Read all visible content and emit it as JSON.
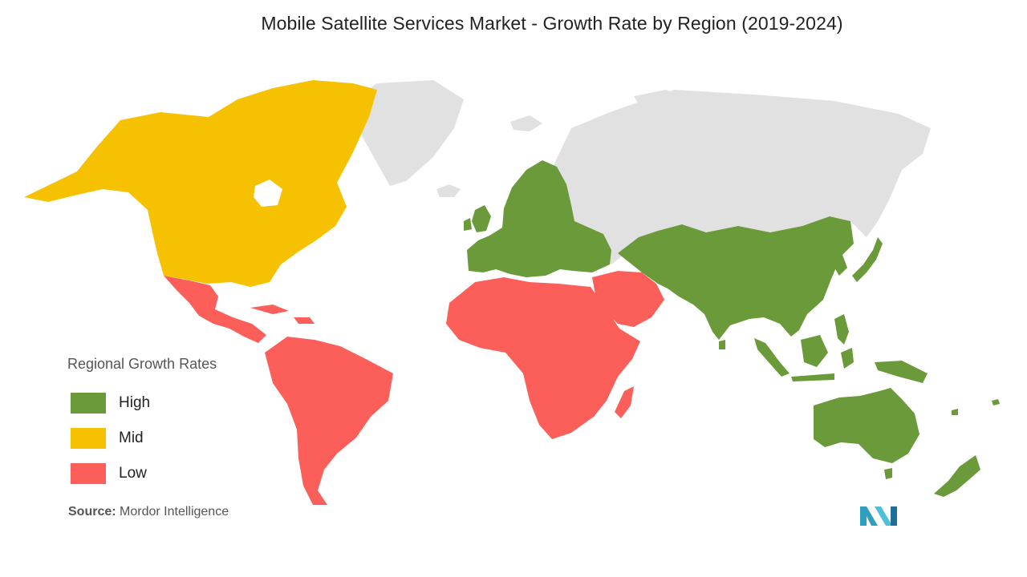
{
  "title": "Mobile Satellite Services Market - Growth Rate by Region (2019-2024)",
  "legend": {
    "title": "Regional Growth Rates",
    "items": [
      {
        "label": "High",
        "color": "#6a9a3a"
      },
      {
        "label": "Mid",
        "color": "#f6c100"
      },
      {
        "label": "Low",
        "color": "#fc5f5a"
      }
    ]
  },
  "colors": {
    "no_data": "#e1e1e1"
  },
  "regions": [
    {
      "name": "North America",
      "growth": "Mid"
    },
    {
      "name": "Europe",
      "growth": "High"
    },
    {
      "name": "Asia Pacific",
      "growth": "High"
    },
    {
      "name": "Latin America",
      "growth": "Low"
    },
    {
      "name": "Middle East and Africa",
      "growth": "Low"
    }
  ],
  "source": {
    "prefix": "Source:",
    "text": "Mordor Intelligence"
  },
  "logo_icon": "mordor-intelligence-logo-icon"
}
